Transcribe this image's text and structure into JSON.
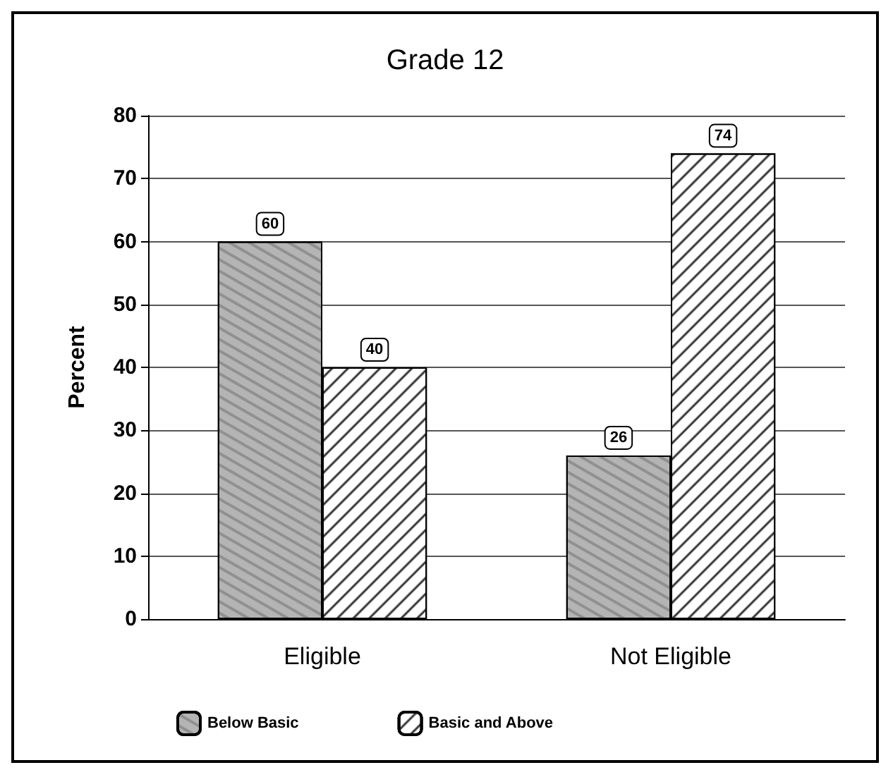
{
  "chart_data": {
    "type": "bar",
    "title": "Grade 12",
    "ylabel": "Percent",
    "categories": [
      "Eligible",
      "Not Eligible"
    ],
    "series": [
      {
        "name": "Below Basic",
        "color": "#b4b4b4",
        "values": [
          60,
          26
        ]
      },
      {
        "name": "Basic and Above",
        "color": "#ffffff",
        "values": [
          40,
          74
        ]
      }
    ],
    "ylim": [
      0,
      80
    ],
    "yticks": [
      0,
      10,
      20,
      30,
      40,
      50,
      60,
      70,
      80
    ],
    "grid": "y",
    "legend": "bottom",
    "data_labels": true
  }
}
